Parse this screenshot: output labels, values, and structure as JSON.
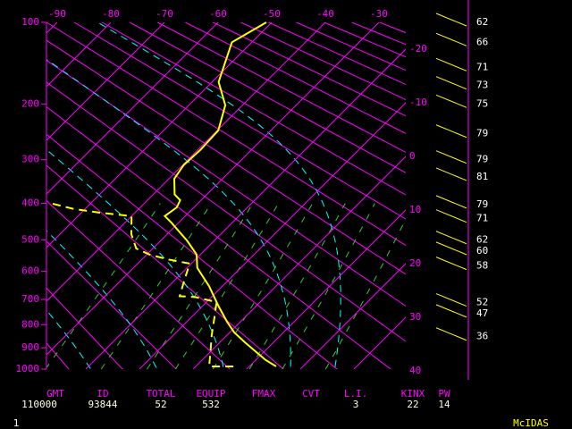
{
  "chart_data": {
    "type": "skewt",
    "ylim": [
      1000,
      100
    ],
    "yticks": [
      100,
      200,
      300,
      400,
      500,
      600,
      700,
      800,
      900,
      1000
    ],
    "xlim": [
      -92,
      -25
    ],
    "xticks": [
      -90,
      -80,
      -70,
      -60,
      -50,
      -40,
      -30
    ],
    "x2ticks": [
      -20,
      -10,
      0,
      10,
      20,
      30,
      40
    ],
    "grid_color": "#ff00ff",
    "series": [
      {
        "color": "#ffff00",
        "dash": false,
        "pressure": [
          100,
          120,
          168,
          202,
          244,
          280,
          311,
          341,
          378,
          392,
          410,
          433,
          452,
          503,
          545,
          588,
          651,
          727,
          788,
          832,
          876,
          956,
          987
        ],
        "values": [
          -51,
          -53.7,
          -48.8,
          -43.2,
          -39.8,
          -39.5,
          -39.8,
          -39.0,
          -36.0,
          -33.9,
          -33.2,
          -33.8,
          -31.2,
          -25.0,
          -20.7,
          -18.1,
          -12.5,
          -6.9,
          -2.5,
          0.8,
          4.7,
          11.8,
          15.0
        ]
      },
      {
        "color": "#ffff00",
        "dash": true,
        "pressure": [
          401,
          414,
          424,
          433,
          483,
          526,
          545,
          560,
          574,
          625,
          688,
          691,
          710,
          769,
          843,
          923,
          987,
          987
        ],
        "values": [
          -57.0,
          -52.2,
          -46.5,
          -40.0,
          -36.7,
          -33.1,
          -29.5,
          -25.3,
          -20.3,
          -18.4,
          -16.1,
          -13.1,
          -8.1,
          -5.7,
          -2.9,
          0.2,
          2.5,
          7.5
        ]
      }
    ],
    "side_levels": [
      100,
      120,
      149,
      173,
      200,
      250,
      300,
      337,
      403,
      440,
      501,
      534,
      582,
      712,
      755,
      851
    ],
    "side_values": [
      62,
      66,
      71,
      73,
      75,
      79,
      79,
      81,
      79,
      71,
      62,
      60,
      58,
      52,
      47,
      36
    ]
  },
  "stats": [
    {
      "label": "GMT",
      "value": "110000"
    },
    {
      "label": "ID",
      "value": "93844"
    },
    {
      "label": "TOTAL",
      "value": "52"
    },
    {
      "label": "EQUIP",
      "value": "532"
    },
    {
      "label": "FMAX"
    },
    {
      "label": "CVT"
    },
    {
      "label": "L.I.",
      "value": "3"
    },
    {
      "label": "KINX",
      "value": "22"
    },
    {
      "label": "PW",
      "value": "14"
    }
  ],
  "footer": {
    "left": "1",
    "right": "McIDAS"
  }
}
